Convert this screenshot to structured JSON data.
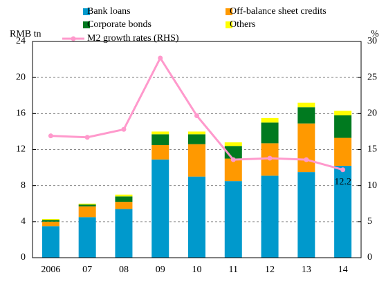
{
  "chart_data": {
    "type": "bar",
    "stacked": true,
    "categories": [
      "2006",
      "07",
      "08",
      "09",
      "10",
      "11",
      "12",
      "13",
      "14"
    ],
    "ylabel": "RMB tn",
    "y2label": "%",
    "ylim": [
      0,
      24
    ],
    "yticks": [
      0,
      4,
      8,
      12,
      16,
      20,
      24
    ],
    "y2lim": [
      0,
      30
    ],
    "y2ticks": [
      0,
      5,
      10,
      15,
      20,
      25,
      30
    ],
    "grid": true,
    "series": [
      {
        "name": "Bank loans",
        "color": "#0099cc",
        "values": [
          3.5,
          4.5,
          5.4,
          10.9,
          9.0,
          8.5,
          9.1,
          9.5,
          10.2
        ]
      },
      {
        "name": "Off-balance sheet credits",
        "color": "#ff9900",
        "values": [
          0.5,
          1.2,
          0.8,
          1.6,
          3.6,
          2.5,
          3.6,
          5.4,
          3.1
        ]
      },
      {
        "name": "Corporate bonds",
        "color": "#007a1f",
        "values": [
          0.2,
          0.2,
          0.6,
          1.2,
          1.1,
          1.4,
          2.3,
          1.8,
          2.5
        ]
      },
      {
        "name": "Others",
        "color": "#ffff00",
        "values": [
          0.1,
          0.1,
          0.2,
          0.3,
          0.3,
          0.4,
          0.5,
          0.5,
          0.5
        ]
      },
      {
        "name": "M2 growth rates (RHS)",
        "color": "#ff99cc",
        "type": "line",
        "axis": "y2",
        "values": [
          16.9,
          16.7,
          17.8,
          27.7,
          19.7,
          13.6,
          13.8,
          13.6,
          12.2
        ]
      }
    ]
  }
}
